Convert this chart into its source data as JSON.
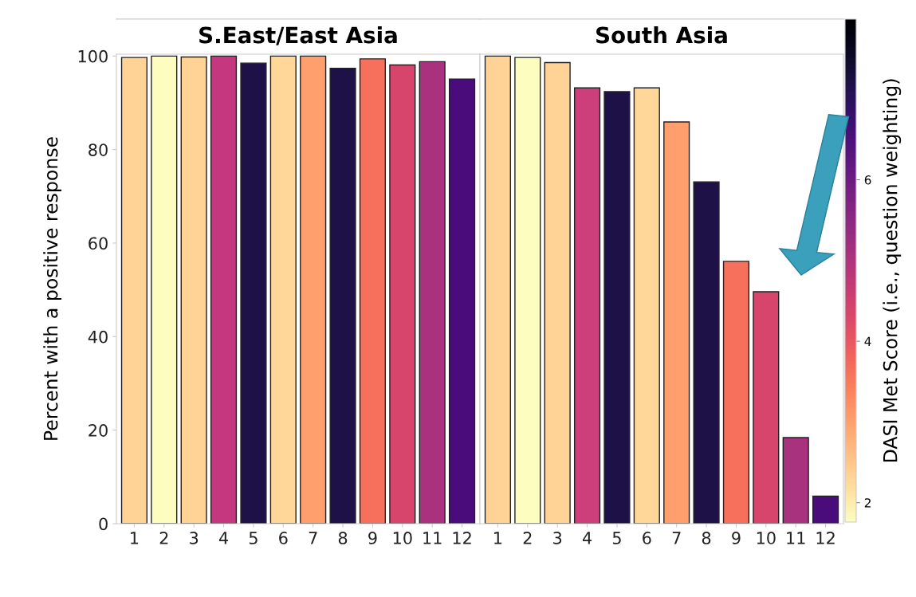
{
  "chart_data": [
    {
      "type": "bar",
      "title": "S.East/East Asia",
      "ylabel": "Percent with a positive response",
      "categories": [
        "1",
        "2",
        "3",
        "4",
        "5",
        "6",
        "7",
        "8",
        "9",
        "10",
        "11",
        "12"
      ],
      "values": [
        99.7,
        100,
        99.8,
        100,
        98.5,
        100,
        100,
        97.4,
        99.4,
        98.1,
        98.8,
        95.1
      ],
      "colors": [
        "#fed395",
        "#fcfdbf",
        "#fed395",
        "#c5377e",
        "#1d1147",
        "#fed799",
        "#fe9f6d",
        "#1d1147",
        "#f7705c",
        "#d8456c",
        "#a8327d",
        "#4a0c7a"
      ],
      "ylim": [
        0,
        100.4
      ],
      "yticks": [
        0,
        20,
        40,
        60,
        80,
        100
      ],
      "grid": false
    },
    {
      "type": "bar",
      "title": "South Asia",
      "clabel": "DASI Met Score (i.e., question weighting)",
      "categories": [
        "1",
        "2",
        "3",
        "4",
        "5",
        "6",
        "7",
        "8",
        "9",
        "10",
        "11",
        "12"
      ],
      "values": [
        100,
        99.7,
        98.6,
        93.2,
        92.4,
        93.2,
        85.9,
        73.1,
        56.1,
        49.6,
        18.4,
        5.9
      ],
      "colors": [
        "#fed395",
        "#fcfdbf",
        "#fed395",
        "#cd3f7a",
        "#1d1147",
        "#fed799",
        "#fe9f6d",
        "#1d1147",
        "#f7705c",
        "#d8456c",
        "#a8327d",
        "#4a0c7a"
      ],
      "ylim": [
        0,
        100.4
      ],
      "yticks": [
        0,
        20,
        40,
        60,
        80,
        100
      ],
      "tick_labels": "x",
      "grid": false,
      "clim": [
        1.76,
        7.99
      ],
      "cticks": [
        2,
        4,
        6
      ]
    }
  ]
}
